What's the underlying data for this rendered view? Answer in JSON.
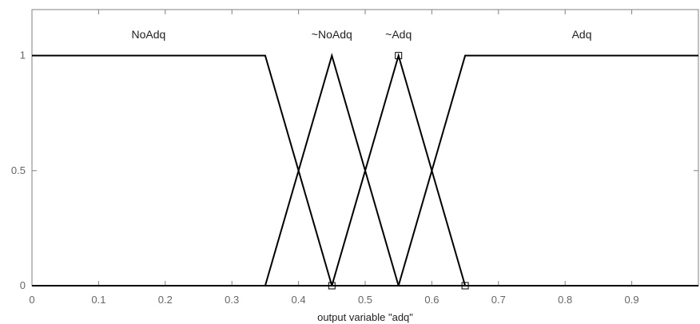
{
  "chart_data": {
    "type": "line",
    "xlabel": "output variable \"adq\"",
    "xlim": [
      0,
      1
    ],
    "ylim": [
      0,
      1.2
    ],
    "x_ticks": [
      "0",
      "0.1",
      "0.2",
      "0.3",
      "0.4",
      "0.5",
      "0.6",
      "0.7",
      "0.8",
      "0.9"
    ],
    "y_ticks": [
      "0",
      "0.5",
      "1"
    ],
    "grid": false,
    "colors": {
      "line": "#000000",
      "axis": "#808080",
      "tick_text": "#666666"
    },
    "series": [
      {
        "name": "NoAdq",
        "x": [
          0,
          0.35,
          0.45,
          1
        ],
        "y": [
          1,
          1,
          0,
          0
        ]
      },
      {
        "name": "~NoAdq",
        "x": [
          0,
          0.35,
          0.45,
          0.55,
          1
        ],
        "y": [
          0,
          0,
          1,
          0,
          0
        ]
      },
      {
        "name": "~Adq",
        "x": [
          0,
          0.45,
          0.55,
          0.65,
          1
        ],
        "y": [
          0,
          0,
          1,
          0,
          0
        ]
      },
      {
        "name": "Adq",
        "x": [
          0,
          0.55,
          0.65,
          1
        ],
        "y": [
          0,
          0,
          1,
          1
        ]
      }
    ],
    "markers": [
      {
        "x": 0.45,
        "y": 0
      },
      {
        "x": 0.55,
        "y": 1
      },
      {
        "x": 0.65,
        "y": 0
      }
    ]
  }
}
